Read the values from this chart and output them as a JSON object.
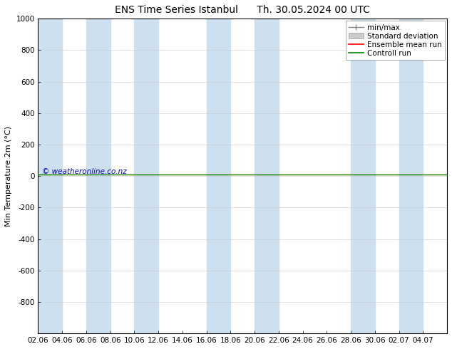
{
  "title_left": "ENS Time Series Istanbul",
  "title_right": "Th. 30.05.2024 00 UTC",
  "ylabel": "Min Temperature 2m (°C)",
  "ylim_top": -1000,
  "ylim_bottom": 1000,
  "yticks": [
    -800,
    -600,
    -400,
    -200,
    0,
    200,
    400,
    600,
    800,
    1000
  ],
  "xtick_labels": [
    "02.06",
    "04.06",
    "06.06",
    "08.06",
    "10.06",
    "12.06",
    "14.06",
    "16.06",
    "18.06",
    "20.06",
    "22.06",
    "24.06",
    "26.06",
    "28.06",
    "30.06",
    "02.07",
    "04.07"
  ],
  "xtick_positions": [
    0,
    2,
    4,
    6,
    8,
    10,
    12,
    14,
    16,
    18,
    20,
    22,
    24,
    26,
    28,
    30,
    32
  ],
  "x_min": 0,
  "x_max": 34,
  "blue_columns": [
    [
      0,
      2
    ],
    [
      4,
      6
    ],
    [
      8,
      10
    ],
    [
      14,
      16
    ],
    [
      18,
      20
    ],
    [
      26,
      28
    ],
    [
      30,
      32
    ]
  ],
  "blue_color": "#cce0f0",
  "green_line_y": 10,
  "red_line_y": 10,
  "copyright_text": "© weatheronline.co.nz",
  "copyright_color": "#0000cc",
  "legend_labels": [
    "min/max",
    "Standard deviation",
    "Ensemble mean run",
    "Controll run"
  ],
  "minmax_color": "#888888",
  "std_dev_color": "#cccccc",
  "ensemble_color": "#ff0000",
  "control_color": "#008800",
  "background_color": "#ffffff",
  "title_fontsize": 10,
  "axis_label_fontsize": 8,
  "tick_fontsize": 7.5,
  "legend_fontsize": 7.5
}
